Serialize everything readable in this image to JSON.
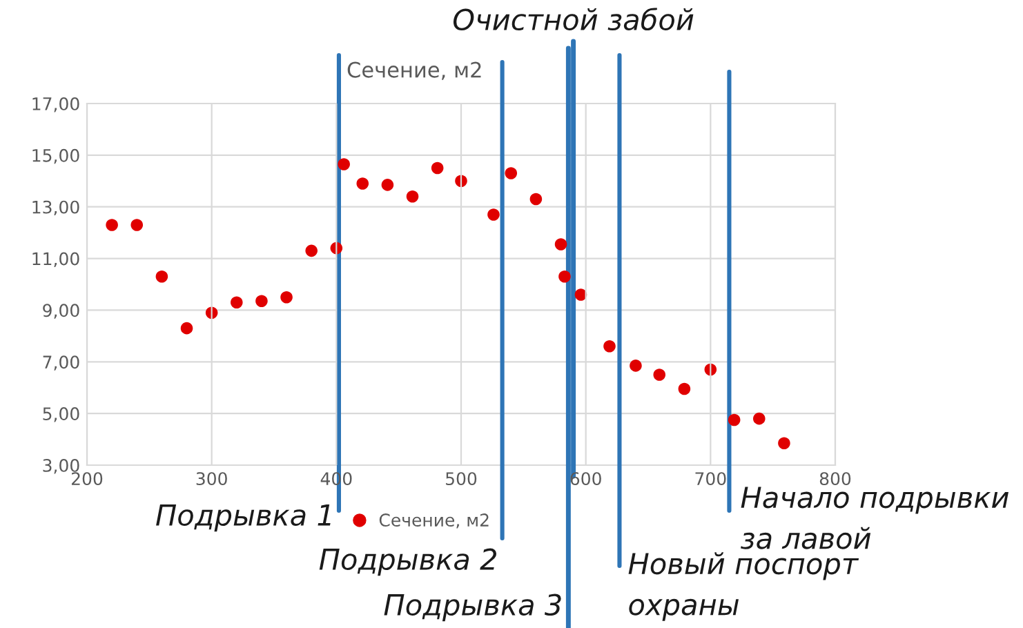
{
  "chart_data": {
    "type": "scatter",
    "title": "Сечение, м2",
    "x": [
      220,
      240,
      260,
      280,
      300,
      320,
      340,
      360,
      380,
      400,
      406,
      421,
      441,
      461,
      481,
      500,
      526,
      540,
      560,
      580,
      583,
      596,
      619,
      640,
      659,
      679,
      700,
      719,
      739,
      759
    ],
    "series": [
      {
        "name": "Сечение, м2",
        "color": "#e00000",
        "values": [
          12.3,
          12.3,
          10.3,
          8.3,
          8.9,
          9.3,
          9.35,
          9.5,
          11.3,
          11.4,
          14.65,
          13.9,
          13.85,
          13.4,
          14.5,
          14.0,
          12.7,
          14.3,
          13.3,
          11.55,
          10.3,
          9.6,
          7.6,
          6.85,
          6.5,
          5.95,
          6.7,
          4.75,
          4.8,
          3.85
        ]
      }
    ],
    "xlim": [
      200,
      800
    ],
    "xticks": [
      200,
      300,
      400,
      500,
      600,
      700,
      800
    ],
    "ylim": [
      3,
      17
    ],
    "yticks": [
      {
        "value": 3,
        "label": "3,00"
      },
      {
        "value": 5,
        "label": "5,00"
      },
      {
        "value": 7,
        "label": "7,00"
      },
      {
        "value": 9,
        "label": "9,00"
      },
      {
        "value": 11,
        "label": "11,00"
      },
      {
        "value": 13,
        "label": "13,00"
      },
      {
        "value": 15,
        "label": "15,00"
      },
      {
        "value": 17,
        "label": "17,00"
      }
    ],
    "ref_lines": [
      {
        "axis": "x",
        "value": 402,
        "label": "Подрывка 1",
        "color": "#2e75b6"
      },
      {
        "axis": "x",
        "value": 533,
        "label": "Подрывка 2",
        "color": "#2e75b6"
      },
      {
        "axis": "x",
        "value": 586,
        "label": "Подрывка 3",
        "color": "#2e75b6"
      },
      {
        "axis": "x",
        "value": 590,
        "label": "Очистной забой",
        "color": "#2e75b6"
      },
      {
        "axis": "x",
        "value": 627,
        "label": "Новый поспорт\nохраны",
        "color": "#2e75b6"
      },
      {
        "axis": "x",
        "value": 715,
        "label": "Начало подрывки\nза лавой",
        "color": "#2e75b6"
      }
    ],
    "grid": true,
    "legend": "bottom",
    "marker": "circle"
  }
}
